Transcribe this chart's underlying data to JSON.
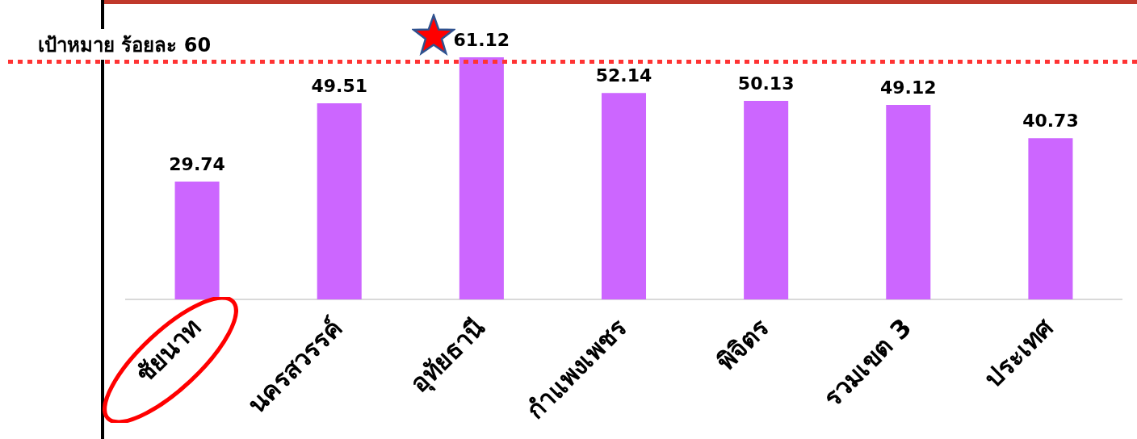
{
  "chart_data": {
    "type": "bar",
    "categories": [
      "ชัยนาท",
      "นครสวรรค์",
      "อุทัยธานี",
      "กำแพงเพชร",
      "พิจิตร",
      "รวมเขต 3",
      "ประเทศ"
    ],
    "values": [
      29.74,
      49.51,
      61.12,
      52.14,
      50.13,
      49.12,
      40.73
    ],
    "color": "#cc66ff",
    "ylim": [
      0,
      75
    ],
    "tick_labels": "x",
    "data_labels": true,
    "ref_lines": [
      {
        "axis": "y",
        "value": 60,
        "label": "เป้าหมาย ร้อยละ 60",
        "color": "#ff3333",
        "line_style": "dotted"
      }
    ]
  }
}
